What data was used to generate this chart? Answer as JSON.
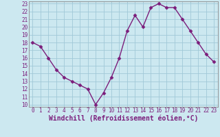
{
  "x": [
    0,
    1,
    2,
    3,
    4,
    5,
    6,
    7,
    8,
    9,
    10,
    11,
    12,
    13,
    14,
    15,
    16,
    17,
    18,
    19,
    20,
    21,
    22,
    23
  ],
  "y": [
    18,
    17.5,
    16,
    14.5,
    13.5,
    13,
    12.5,
    12,
    10,
    11.5,
    13.5,
    16,
    19.5,
    21.5,
    20,
    22.5,
    23,
    22.5,
    22.5,
    21,
    19.5,
    18,
    16.5,
    15.5
  ],
  "line_color": "#7b1d7b",
  "marker": "D",
  "marker_size": 2.5,
  "line_width": 1.0,
  "bg_color": "#cce8f0",
  "grid_color": "#a0c8d8",
  "xlabel": "Windchill (Refroidissement éolien,°C)",
  "ylim": [
    10,
    23
  ],
  "xlim": [
    0,
    23
  ],
  "yticks": [
    10,
    11,
    12,
    13,
    14,
    15,
    16,
    17,
    18,
    19,
    20,
    21,
    22,
    23
  ],
  "xticks": [
    0,
    1,
    2,
    3,
    4,
    5,
    6,
    7,
    8,
    9,
    10,
    11,
    12,
    13,
    14,
    15,
    16,
    17,
    18,
    19,
    20,
    21,
    22,
    23
  ],
  "tick_fontsize": 5.5,
  "xlabel_fontsize": 7.0,
  "tick_color": "#7b1d7b",
  "xlabel_color": "#7b1d7b",
  "spine_color": "#888888"
}
